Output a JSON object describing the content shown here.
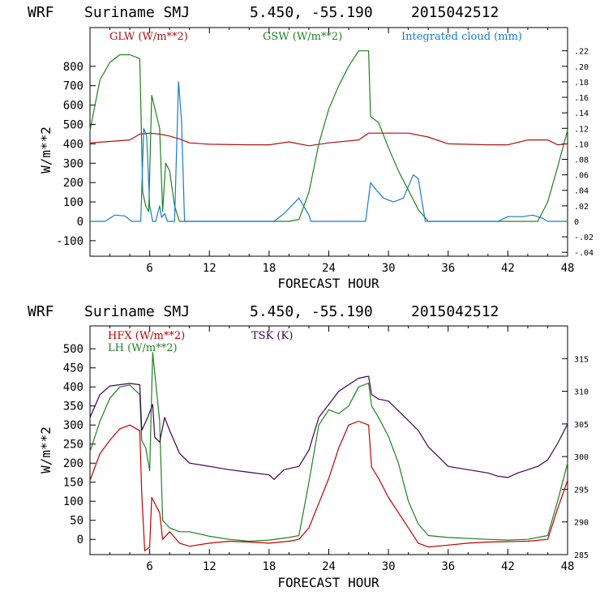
{
  "colors": {
    "glw": "#b01010",
    "gsw": "#208020",
    "cloud": "#1a7ad0",
    "hfx": "#c00000",
    "lh": "#208020",
    "tsk": "#400050"
  },
  "chart_data": [
    {
      "type": "line",
      "header": {
        "model": "WRF",
        "location": "Suriname SMJ",
        "coords": "5.450, -55.190",
        "init": "2015042512"
      },
      "xlabel": "FORECAST HOUR",
      "ylabel": "W/m**2",
      "xlim": [
        0,
        48
      ],
      "xticks": [
        "6",
        "12",
        "18",
        "24",
        "30",
        "36",
        "42",
        "48"
      ],
      "ylim": [
        -180,
        1000
      ],
      "yticks": [
        "-100",
        "0",
        "100",
        "200",
        "300",
        "400",
        "500",
        "600",
        "700",
        "800"
      ],
      "y2lim": [
        -0.045,
        0.25
      ],
      "y2ticks": [
        "-.04",
        "-.02",
        "0",
        ".02",
        ".04",
        ".06",
        ".08",
        ".10",
        ".12",
        ".14",
        ".16",
        ".18",
        ".20",
        ".22"
      ],
      "series": [
        {
          "name": "GLW (W/m**2)",
          "color_key": "glw",
          "axis": "left",
          "points": [
            [
              0,
              405
            ],
            [
              2,
              412
            ],
            [
              4,
              420
            ],
            [
              5,
              450
            ],
            [
              6,
              455
            ],
            [
              7,
              450
            ],
            [
              8,
              440
            ],
            [
              9,
              425
            ],
            [
              10,
              405
            ],
            [
              12,
              398
            ],
            [
              16,
              395
            ],
            [
              18,
              395
            ],
            [
              20,
              410
            ],
            [
              22,
              390
            ],
            [
              24,
              405
            ],
            [
              27,
              420
            ],
            [
              28,
              455
            ],
            [
              32,
              455
            ],
            [
              34,
              435
            ],
            [
              36,
              400
            ],
            [
              40,
              395
            ],
            [
              42,
              395
            ],
            [
              44,
              420
            ],
            [
              46,
              420
            ],
            [
              47,
              395
            ],
            [
              48,
              400
            ]
          ]
        },
        {
          "name": "GSW (W/m**2)",
          "color_key": "gsw",
          "axis": "left",
          "points": [
            [
              0,
              470
            ],
            [
              1,
              730
            ],
            [
              2,
              820
            ],
            [
              3,
              860
            ],
            [
              4,
              860
            ],
            [
              5,
              840
            ],
            [
              5.3,
              150
            ],
            [
              5.6,
              80
            ],
            [
              5.9,
              50
            ],
            [
              6.2,
              650
            ],
            [
              7,
              480
            ],
            [
              7.3,
              50
            ],
            [
              7.6,
              300
            ],
            [
              8,
              260
            ],
            [
              8.5,
              80
            ],
            [
              9,
              0
            ],
            [
              18,
              0
            ],
            [
              20,
              0
            ],
            [
              21,
              10
            ],
            [
              22,
              150
            ],
            [
              23,
              400
            ],
            [
              24,
              580
            ],
            [
              25,
              700
            ],
            [
              26,
              800
            ],
            [
              27,
              880
            ],
            [
              28,
              880
            ],
            [
              28.2,
              540
            ],
            [
              29,
              510
            ],
            [
              30,
              380
            ],
            [
              31,
              260
            ],
            [
              32,
              160
            ],
            [
              33,
              60
            ],
            [
              34,
              0
            ],
            [
              45,
              0
            ],
            [
              46,
              100
            ],
            [
              47,
              280
            ],
            [
              48,
              470
            ]
          ]
        },
        {
          "name": "Integrated cloud (mm)",
          "color_key": "cloud",
          "axis": "right",
          "points": [
            [
              0,
              0
            ],
            [
              1.5,
              0
            ],
            [
              2.5,
              0.008
            ],
            [
              3.5,
              0.007
            ],
            [
              4.2,
              0
            ],
            [
              5.1,
              0
            ],
            [
              5.4,
              0.12
            ],
            [
              5.7,
              0.11
            ],
            [
              6.0,
              0.02
            ],
            [
              6.3,
              0
            ],
            [
              6.6,
              0
            ],
            [
              7.0,
              0.02
            ],
            [
              7.2,
              0.005
            ],
            [
              7.5,
              0.01
            ],
            [
              7.8,
              0
            ],
            [
              8.5,
              0
            ],
            [
              8.9,
              0.18
            ],
            [
              9.2,
              0.13
            ],
            [
              9.5,
              0
            ],
            [
              18.5,
              0
            ],
            [
              19.5,
              0.01
            ],
            [
              21,
              0.03
            ],
            [
              22,
              0.008
            ],
            [
              22.2,
              0
            ],
            [
              27.7,
              0
            ],
            [
              28.2,
              0.05
            ],
            [
              28.8,
              0.04
            ],
            [
              29.5,
              0.03
            ],
            [
              30.5,
              0.025
            ],
            [
              31.5,
              0.03
            ],
            [
              32.5,
              0.06
            ],
            [
              33,
              0.055
            ],
            [
              33.7,
              0
            ],
            [
              41,
              0
            ],
            [
              42,
              0.006
            ],
            [
              43.5,
              0.006
            ],
            [
              44.5,
              0.008
            ],
            [
              45.5,
              0.004
            ],
            [
              46,
              0
            ],
            [
              48,
              0
            ]
          ]
        }
      ]
    },
    {
      "type": "line",
      "header": {
        "model": "WRF",
        "location": "Suriname SMJ",
        "coords": "5.450, -55.190",
        "init": "2015042512"
      },
      "xlabel": "FORECAST HOUR",
      "ylabel": "W/m**2",
      "xlim": [
        0,
        48
      ],
      "xticks": [
        "6",
        "12",
        "18",
        "24",
        "30",
        "36",
        "42",
        "48"
      ],
      "ylim": [
        -40,
        560
      ],
      "yticks": [
        "0",
        "50",
        "100",
        "150",
        "200",
        "250",
        "300",
        "350",
        "400",
        "450",
        "500"
      ],
      "y2lim": [
        285,
        320
      ],
      "y2ticks": [
        "285",
        "290",
        "295",
        "300",
        "305",
        "310",
        "315"
      ],
      "series": [
        {
          "name": "HFX (W/m**2)",
          "color_key": "hfx",
          "axis": "left",
          "points": [
            [
              0,
              155
            ],
            [
              1,
              225
            ],
            [
              2,
              260
            ],
            [
              3,
              290
            ],
            [
              4,
              300
            ],
            [
              5,
              285
            ],
            [
              5.2,
              120
            ],
            [
              5.5,
              -30
            ],
            [
              6,
              -20
            ],
            [
              6.2,
              110
            ],
            [
              7,
              70
            ],
            [
              7.3,
              0
            ],
            [
              8,
              20
            ],
            [
              9,
              -10
            ],
            [
              10,
              -18
            ],
            [
              12,
              -10
            ],
            [
              14,
              -5
            ],
            [
              16,
              -7
            ],
            [
              18,
              -10
            ],
            [
              20,
              -5
            ],
            [
              21,
              0
            ],
            [
              22,
              30
            ],
            [
              24,
              160
            ],
            [
              25,
              240
            ],
            [
              26,
              300
            ],
            [
              27,
              310
            ],
            [
              28,
              300
            ],
            [
              28.3,
              190
            ],
            [
              29,
              160
            ],
            [
              30,
              110
            ],
            [
              31,
              70
            ],
            [
              32,
              30
            ],
            [
              33,
              -10
            ],
            [
              34,
              -20
            ],
            [
              36,
              -15
            ],
            [
              38,
              -10
            ],
            [
              40,
              -7
            ],
            [
              42,
              -6
            ],
            [
              44,
              -5
            ],
            [
              46,
              0
            ],
            [
              47,
              80
            ],
            [
              48,
              155
            ]
          ]
        },
        {
          "name": "LH  (W/m**2)",
          "color_key": "lh",
          "axis": "left",
          "points": [
            [
              0,
              230
            ],
            [
              1,
              310
            ],
            [
              2,
              370
            ],
            [
              3,
              400
            ],
            [
              4,
              405
            ],
            [
              5,
              380
            ],
            [
              5.2,
              260
            ],
            [
              5.6,
              240
            ],
            [
              6,
              180
            ],
            [
              6.3,
              490
            ],
            [
              7,
              310
            ],
            [
              7.3,
              50
            ],
            [
              8,
              30
            ],
            [
              9,
              20
            ],
            [
              10,
              20
            ],
            [
              12,
              8
            ],
            [
              14,
              0
            ],
            [
              16,
              -5
            ],
            [
              18,
              -2
            ],
            [
              20,
              5
            ],
            [
              21,
              10
            ],
            [
              22,
              150
            ],
            [
              23,
              300
            ],
            [
              24,
              340
            ],
            [
              25,
              330
            ],
            [
              26,
              350
            ],
            [
              27,
              400
            ],
            [
              28,
              410
            ],
            [
              28.3,
              350
            ],
            [
              29,
              320
            ],
            [
              30,
              270
            ],
            [
              31,
              200
            ],
            [
              32,
              100
            ],
            [
              33,
              40
            ],
            [
              34,
              10
            ],
            [
              36,
              5
            ],
            [
              40,
              0
            ],
            [
              42,
              -2
            ],
            [
              44,
              0
            ],
            [
              46,
              10
            ],
            [
              47,
              100
            ],
            [
              48,
              200
            ]
          ]
        },
        {
          "name": "TSK (K)",
          "color_key": "tsk",
          "axis": "right",
          "points": [
            [
              0,
              306
            ],
            [
              1,
              309.5
            ],
            [
              2,
              310.8
            ],
            [
              3,
              311
            ],
            [
              4,
              311.2
            ],
            [
              5,
              311
            ],
            [
              5.2,
              304
            ],
            [
              5.8,
              306
            ],
            [
              6.3,
              308
            ],
            [
              6.5,
              303
            ],
            [
              7,
              302.2
            ],
            [
              7.5,
              306
            ],
            [
              8,
              304
            ],
            [
              9,
              300.5
            ],
            [
              10,
              299
            ],
            [
              12,
              298.5
            ],
            [
              14,
              298
            ],
            [
              16,
              297.6
            ],
            [
              18,
              297.2
            ],
            [
              18.5,
              296.5
            ],
            [
              19.5,
              298
            ],
            [
              21,
              298.5
            ],
            [
              22,
              301
            ],
            [
              23,
              306
            ],
            [
              24,
              308
            ],
            [
              25,
              310
            ],
            [
              26,
              311
            ],
            [
              27,
              312
            ],
            [
              28,
              312.3
            ],
            [
              28.3,
              309.5
            ],
            [
              29,
              308.8
            ],
            [
              30,
              308.5
            ],
            [
              31,
              307
            ],
            [
              32,
              305.5
            ],
            [
              33,
              304
            ],
            [
              34,
              301.5
            ],
            [
              36,
              298.5
            ],
            [
              38,
              298
            ],
            [
              40,
              297.5
            ],
            [
              41,
              297
            ],
            [
              42,
              296.8
            ],
            [
              43,
              297.5
            ],
            [
              44,
              298
            ],
            [
              45,
              298.5
            ],
            [
              46,
              299.5
            ],
            [
              47,
              302
            ],
            [
              48,
              305
            ]
          ]
        }
      ]
    }
  ]
}
